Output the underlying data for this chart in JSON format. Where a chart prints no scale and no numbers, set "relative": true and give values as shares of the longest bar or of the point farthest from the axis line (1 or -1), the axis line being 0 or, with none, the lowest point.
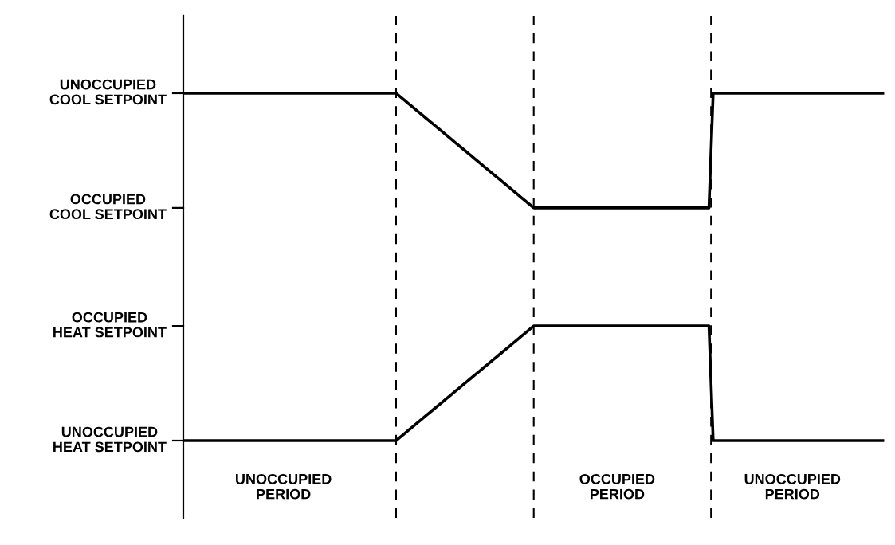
{
  "chart_data": {
    "type": "line",
    "relative": true,
    "categories": [
      null,
      null,
      null,
      null,
      null,
      null,
      null,
      null,
      null,
      null,
      null,
      null,
      null,
      null,
      null,
      null,
      null,
      null,
      null,
      null,
      null,
      null,
      null,
      null,
      "UNOCCUPIED\nPERIOD",
      null,
      null,
      null,
      null,
      null,
      null,
      null,
      null,
      null,
      null,
      null,
      null,
      null,
      null,
      null,
      null,
      null,
      null,
      null,
      null,
      null,
      null,
      null,
      null,
      null,
      null,
      null,
      null,
      null,
      null,
      null,
      null,
      null,
      null,
      null,
      null,
      null,
      null,
      null,
      null,
      null,
      null,
      null,
      null,
      null,
      null,
      null,
      null,
      null,
      null,
      null,
      null,
      null,
      null,
      null,
      null,
      null,
      null,
      null,
      null,
      null,
      null,
      null,
      null,
      null,
      null,
      null,
      null,
      null,
      null,
      null,
      null,
      null,
      null,
      null,
      null,
      null,
      null,
      null,
      "OCCUPIED\nPERIOD",
      null,
      null,
      null,
      null,
      null,
      null,
      null,
      null,
      null,
      null,
      null,
      null,
      null,
      null,
      null,
      null,
      null,
      null,
      null,
      null,
      null,
      null,
      null,
      null,
      null,
      null,
      null,
      null,
      null,
      null,
      null,
      null,
      null,
      null,
      null,
      null,
      null,
      null,
      null,
      null,
      null,
      "UNOCCUPIED\nPERIOD",
      null,
      null,
      null,
      null,
      null,
      null,
      null,
      null,
      null,
      null,
      null,
      null,
      null,
      null,
      null,
      null,
      null,
      null,
      null,
      null,
      null,
      null
    ],
    "series": [
      {
        "color": "#000000",
        "values": [
          1,
          1,
          1,
          1,
          1,
          1,
          1,
          1,
          1,
          1,
          1,
          1,
          1,
          1,
          1,
          1,
          1,
          1,
          1,
          1,
          1,
          1,
          1,
          1,
          1,
          1,
          1,
          1,
          1,
          1,
          1,
          1,
          1,
          1,
          1,
          1,
          1,
          1,
          1,
          1,
          1,
          1,
          1,
          1,
          1,
          1,
          1,
          1,
          1,
          1,
          1,
          1,
          0.99,
          0.98,
          0.97,
          0.96,
          0.95,
          0.94,
          0.93,
          0.92,
          0.91,
          0.9,
          0.89,
          0.88,
          0.87,
          0.86,
          0.85,
          0.84,
          0.83,
          0.82,
          0.81,
          0.8,
          0.79,
          0.78,
          0.77,
          0.76,
          0.75,
          0.74,
          0.73,
          0.72,
          0.71,
          0.7,
          0.69,
          0.68,
          0.67,
          0.67,
          0.67,
          0.67,
          0.67,
          0.67,
          0.67,
          0.67,
          0.67,
          0.67,
          0.67,
          0.67,
          0.67,
          0.67,
          0.67,
          0.67,
          0.67,
          0.67,
          0.67,
          0.67,
          0.67,
          0.67,
          0.67,
          0.67,
          0.67,
          0.67,
          0.67,
          0.67,
          0.67,
          0.67,
          0.67,
          0.67,
          0.67,
          0.67,
          0.67,
          0.67,
          0.67,
          0.67,
          0.67,
          0.67,
          0.67,
          0.67,
          0.67,
          1,
          1,
          1,
          1,
          1,
          1,
          1,
          1,
          1,
          1,
          1,
          1,
          1,
          1,
          1,
          1,
          1,
          1,
          1,
          1,
          1,
          1,
          1,
          1,
          1,
          1,
          1,
          1,
          1,
          1,
          1,
          1,
          1,
          1,
          1,
          1,
          1,
          1,
          1,
          1,
          1,
          1
        ]
      },
      {
        "color": "#000000",
        "values": [
          0,
          0,
          0,
          0,
          0,
          0,
          0,
          0,
          0,
          0,
          0,
          0,
          0,
          0,
          0,
          0,
          0,
          0,
          0,
          0,
          0,
          0,
          0,
          0,
          0,
          0,
          0,
          0,
          0,
          0,
          0,
          0,
          0,
          0,
          0,
          0,
          0,
          0,
          0,
          0,
          0,
          0,
          0,
          0,
          0,
          0,
          0,
          0,
          0,
          0,
          0,
          0,
          0.01,
          0.02,
          0.03,
          0.04,
          0.05,
          0.06,
          0.07,
          0.08,
          0.09,
          0.1,
          0.11,
          0.12,
          0.13,
          0.14,
          0.15,
          0.16,
          0.17,
          0.18,
          0.19,
          0.2,
          0.21,
          0.22,
          0.23,
          0.24,
          0.25,
          0.26,
          0.27,
          0.28,
          0.29,
          0.3,
          0.31,
          0.32,
          0.33,
          0.33,
          0.33,
          0.33,
          0.33,
          0.33,
          0.33,
          0.33,
          0.33,
          0.33,
          0.33,
          0.33,
          0.33,
          0.33,
          0.33,
          0.33,
          0.33,
          0.33,
          0.33,
          0.33,
          0.33,
          0.33,
          0.33,
          0.33,
          0.33,
          0.33,
          0.33,
          0.33,
          0.33,
          0.33,
          0.33,
          0.33,
          0.33,
          0.33,
          0.33,
          0.33,
          0.33,
          0.33,
          0.33,
          0.33,
          0.33,
          0.33,
          0.33,
          0,
          0,
          0,
          0,
          0,
          0,
          0,
          0,
          0,
          0,
          0,
          0,
          0,
          0,
          0,
          0,
          0,
          0,
          0,
          0,
          0,
          0,
          0,
          0,
          0,
          0,
          0,
          0,
          0,
          0,
          0,
          0,
          0,
          0,
          0,
          0,
          0,
          0,
          0,
          0,
          0,
          0
        ]
      }
    ],
    "ref_lines": [
      {
        "axis": "y",
        "value": 1,
        "label": "UNOCCUPIED\nCOOL SETPOINT"
      },
      {
        "axis": "y",
        "value": 0.67,
        "label": "OCCUPIED\nCOOL SETPOINT"
      },
      {
        "axis": "y",
        "value": 0.33,
        "label": "OCCUPIED\nHEAT SETPOINT"
      },
      {
        "axis": "y",
        "value": 0,
        "label": "UNOCCUPIED\nHEAT SETPOINT"
      }
    ],
    "grid": false,
    "marker": "none",
    "line_style": "solid"
  }
}
